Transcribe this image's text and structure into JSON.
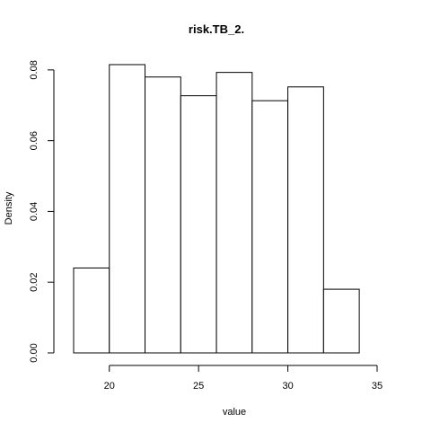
{
  "chart_data": {
    "type": "bar",
    "subtype": "histogram",
    "title": "risk.TB_2.",
    "xlabel": "value",
    "ylabel": "Density",
    "bins": [
      {
        "start": 18,
        "end": 20,
        "density": 0.024
      },
      {
        "start": 20,
        "end": 22,
        "density": 0.0815
      },
      {
        "start": 22,
        "end": 24,
        "density": 0.078
      },
      {
        "start": 24,
        "end": 26,
        "density": 0.0727
      },
      {
        "start": 26,
        "end": 28,
        "density": 0.0793
      },
      {
        "start": 28,
        "end": 30,
        "density": 0.0713
      },
      {
        "start": 30,
        "end": 32,
        "density": 0.0752
      },
      {
        "start": 32,
        "end": 34,
        "density": 0.018
      }
    ],
    "xlim": [
      18,
      35
    ],
    "ylim": [
      0,
      0.082
    ],
    "xticks": [
      20,
      25,
      30,
      35
    ],
    "xtick_labels": [
      "20",
      "25",
      "30",
      "35"
    ],
    "yticks": [
      0.0,
      0.02,
      0.04,
      0.06,
      0.08
    ],
    "ytick_labels": [
      "0.00",
      "0.02",
      "0.04",
      "0.06",
      "0.08"
    ],
    "grid": false,
    "legend": "none",
    "bar_fill": "#ffffff",
    "bar_stroke": "#000000"
  }
}
